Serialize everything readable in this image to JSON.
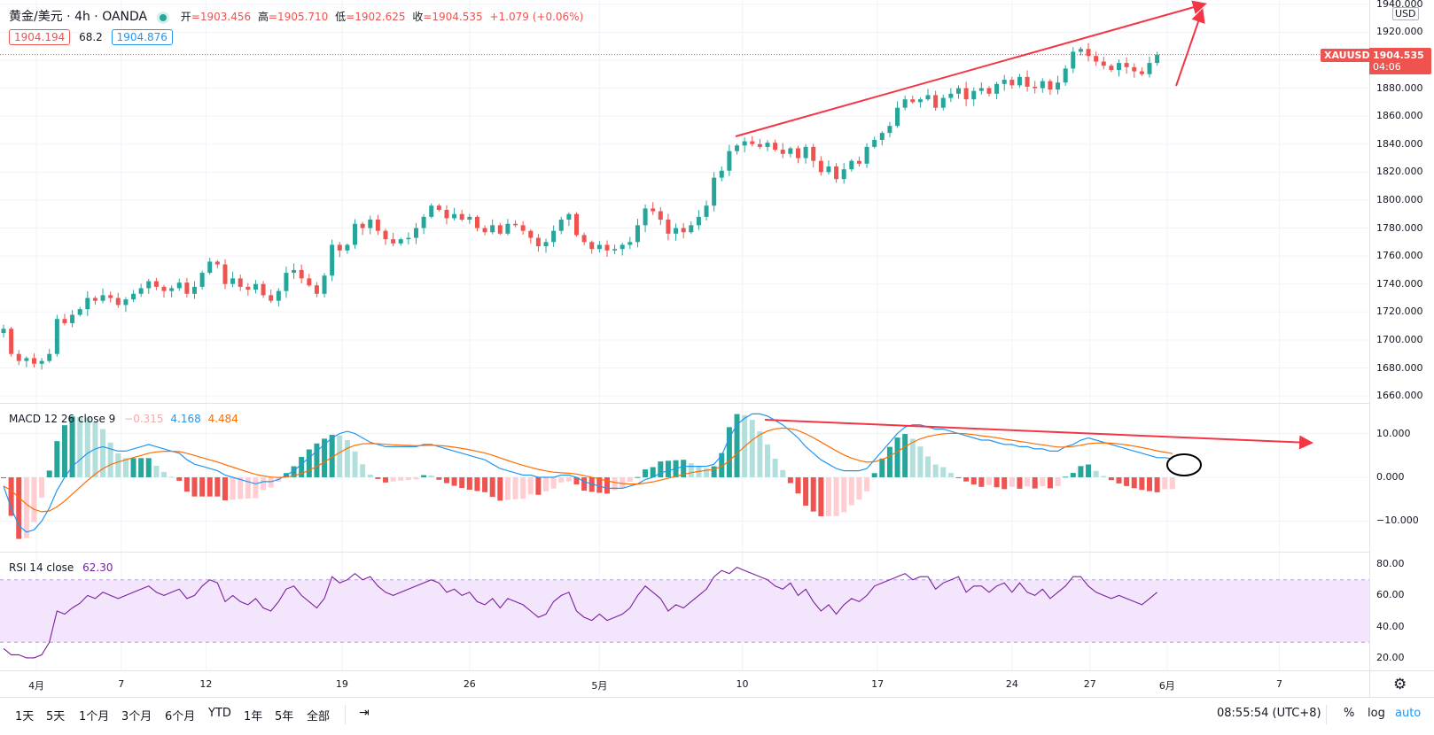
{
  "header": {
    "symbol": "黄金/美元 · 4h · OANDA",
    "ohlc": [
      {
        "label": "开",
        "value": "1903.456"
      },
      {
        "label": "高",
        "value": "1905.710"
      },
      {
        "label": "低",
        "value": "1902.625"
      },
      {
        "label": "收",
        "value": "1904.535"
      }
    ],
    "change": "+1.079 (+0.06%)",
    "bid": "1904.194",
    "spread": "68.2",
    "ask": "1904.876"
  },
  "price_axis": {
    "currency": "USD",
    "ticks": [
      "1940.000",
      "1920.000",
      "1900.000",
      "1880.000",
      "1860.000",
      "1840.000",
      "1820.000",
      "1800.000",
      "1780.000",
      "1760.000",
      "1740.000",
      "1720.000",
      "1700.000",
      "1680.000",
      "1660.000"
    ],
    "last_symbol": "XAUUSD",
    "last_price": "1904.535",
    "countdown": "04:06"
  },
  "macd": {
    "label": "MACD 12 26 close 9",
    "hist_value": "−0.315",
    "macd_value": "4.168",
    "signal_value": "4.484",
    "ticks": [
      "10.000",
      "0.000",
      "−10.000"
    ]
  },
  "rsi": {
    "label": "RSI 14 close",
    "value": "62.30",
    "ticks": [
      "80.00",
      "60.00",
      "40.00",
      "20.00"
    ]
  },
  "time_axis": [
    "4月",
    "7",
    "12",
    "19",
    "26",
    "5月",
    "10",
    "17",
    "24",
    "27",
    "6月",
    "7"
  ],
  "bottom_bar": {
    "ranges": [
      "1天",
      "5天",
      "1个月",
      "3个月",
      "6个月",
      "YTD",
      "1年",
      "5年",
      "全部"
    ],
    "clock": "08:55:54 (UTC+8)",
    "percent": "%",
    "log": "log",
    "auto": "auto"
  },
  "colors": {
    "up": "#26a69a",
    "down": "#ef5350",
    "macd_line": "#2196f3",
    "signal_line": "#ff6d00",
    "rsi_line": "#7b1fa2",
    "rsi_band": "#f3e5fc",
    "annotation": "#f23645"
  },
  "chart_data": [
    {
      "type": "candlestick",
      "title": "黄金/美元 4h OANDA",
      "x_labels": [
        "4月",
        "7",
        "12",
        "19",
        "26",
        "5月",
        "10",
        "17",
        "24",
        "27",
        "6月",
        "7"
      ],
      "ylim": [
        1655,
        1943
      ],
      "close": [
        1708,
        1690,
        1685,
        1687,
        1683,
        1685,
        1690,
        1715,
        1712,
        1718,
        1722,
        1730,
        1728,
        1732,
        1730,
        1725,
        1729,
        1733,
        1737,
        1742,
        1738,
        1735,
        1737,
        1741,
        1733,
        1738,
        1748,
        1756,
        1754,
        1740,
        1744,
        1738,
        1736,
        1740,
        1732,
        1728,
        1735,
        1748,
        1750,
        1744,
        1739,
        1733,
        1746,
        1768,
        1764,
        1768,
        1783,
        1780,
        1786,
        1778,
        1772,
        1769,
        1772,
        1773,
        1780,
        1788,
        1796,
        1793,
        1787,
        1790,
        1786,
        1788,
        1780,
        1777,
        1782,
        1776,
        1783,
        1782,
        1778,
        1773,
        1767,
        1770,
        1778,
        1786,
        1790,
        1775,
        1770,
        1765,
        1768,
        1764,
        1765,
        1768,
        1770,
        1782,
        1794,
        1792,
        1786,
        1776,
        1780,
        1777,
        1782,
        1788,
        1796,
        1816,
        1821,
        1835,
        1839,
        1842,
        1840,
        1838,
        1841,
        1836,
        1833,
        1837,
        1830,
        1838,
        1828,
        1820,
        1824,
        1815,
        1822,
        1828,
        1826,
        1838,
        1843,
        1848,
        1853,
        1866,
        1872,
        1870,
        1872,
        1875,
        1866,
        1873,
        1876,
        1880,
        1872,
        1878,
        1880,
        1876,
        1883,
        1886,
        1882,
        1888,
        1881,
        1880,
        1885,
        1879,
        1884,
        1894,
        1906,
        1908,
        1903,
        1899,
        1896,
        1893,
        1898,
        1895,
        1892,
        1890,
        1898,
        1904
      ],
      "macd": [
        -2,
        -7,
        -11,
        -12.5,
        -12,
        -10,
        -7,
        -3,
        0,
        2.5,
        4,
        5.5,
        6.5,
        7,
        6.5,
        6,
        6,
        6.5,
        7,
        7.5,
        7,
        6.5,
        6,
        5.5,
        4,
        3,
        2.5,
        2,
        1.5,
        0.5,
        0,
        -0.5,
        -1,
        -1.5,
        -1,
        -1,
        -0.5,
        0.5,
        1.5,
        3,
        4.5,
        6,
        7.5,
        9,
        10,
        10.5,
        10,
        9,
        8,
        7.5,
        7,
        7,
        7,
        7,
        7,
        7.5,
        7.5,
        7,
        6.5,
        6,
        5.5,
        5,
        4.5,
        4,
        3,
        2,
        1.5,
        1,
        0.5,
        0.5,
        0,
        0,
        0,
        0.5,
        0.5,
        0,
        -1,
        -1.5,
        -2,
        -2.5,
        -2.5,
        -2.5,
        -2,
        -1.5,
        -0.5,
        0,
        1,
        1.5,
        2,
        2.5,
        2.5,
        2.5,
        2.5,
        3,
        5,
        9,
        12,
        13.5,
        14.5,
        14.5,
        14,
        13,
        12,
        10.5,
        9,
        7,
        5.5,
        4,
        3,
        2,
        1.5,
        1.5,
        1.5,
        2,
        4,
        6,
        8,
        10,
        11.5,
        12,
        12,
        11.5,
        11,
        11,
        10.5,
        10,
        9.5,
        9,
        8.5,
        8.5,
        8,
        7.5,
        7.5,
        7,
        7,
        6.5,
        6.5,
        6,
        6,
        7,
        7.5,
        8.5,
        9,
        8.5,
        8,
        7.5,
        7,
        6.5,
        6,
        5.5,
        5,
        4.5,
        4.5,
        4.2
      ],
      "rsi": [
        26,
        22,
        22,
        20,
        20,
        22,
        30,
        50,
        48,
        52,
        55,
        60,
        58,
        62,
        60,
        58,
        60,
        62,
        64,
        66,
        62,
        60,
        62,
        64,
        58,
        60,
        66,
        70,
        68,
        56,
        60,
        56,
        54,
        58,
        52,
        50,
        56,
        64,
        66,
        60,
        56,
        52,
        58,
        72,
        68,
        70,
        74,
        70,
        72,
        66,
        62,
        60,
        62,
        64,
        66,
        68,
        70,
        68,
        62,
        64,
        60,
        62,
        56,
        54,
        58,
        52,
        58,
        56,
        54,
        50,
        46,
        48,
        56,
        60,
        62,
        50,
        46,
        44,
        48,
        44,
        46,
        48,
        52,
        60,
        66,
        62,
        58,
        50,
        54,
        52,
        56,
        60,
        64,
        72,
        76,
        74,
        78,
        76,
        74,
        72,
        70,
        66,
        64,
        68,
        60,
        64,
        56,
        50,
        54,
        48,
        54,
        58,
        56,
        60,
        66,
        68,
        70,
        72,
        74,
        70,
        72,
        72,
        64,
        68,
        70,
        72,
        62,
        66,
        66,
        62,
        66,
        68,
        62,
        68,
        62,
        60,
        64,
        58,
        62,
        66,
        72,
        72,
        66,
        62,
        60,
        58,
        60,
        58,
        56,
        54,
        58,
        62
      ]
    }
  ]
}
